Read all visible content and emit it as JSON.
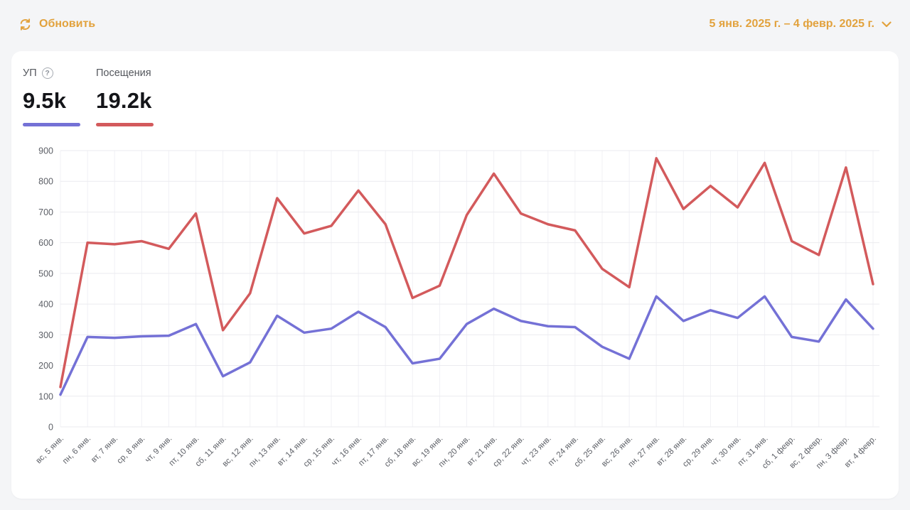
{
  "header": {
    "refresh_label": "Обновить",
    "date_range": "5 янв. 2025 г. – 4 февр. 2025 г."
  },
  "icons": {
    "help_glyph": "?"
  },
  "stats": [
    {
      "label": "УП",
      "value": "9.5k",
      "color": "#7471d6"
    },
    {
      "label": "Посещения",
      "value": "19.2k",
      "color": "#d35a5c"
    }
  ],
  "chart_data": {
    "type": "line",
    "title": "",
    "xlabel": "",
    "ylabel": "",
    "ylim": [
      0,
      900
    ],
    "yticks": [
      0,
      100,
      200,
      300,
      400,
      500,
      600,
      700,
      800,
      900
    ],
    "grid": true,
    "legend_position": "top-left",
    "categories": [
      "вс, 5 янв.",
      "пн, 6 янв.",
      "вт, 7 янв.",
      "ср, 8 янв.",
      "чт, 9 янв.",
      "пт, 10 янв.",
      "сб, 11 янв.",
      "вс, 12 янв.",
      "пн, 13 янв.",
      "вт, 14 янв.",
      "ср, 15 янв.",
      "чт, 16 янв.",
      "пт, 17 янв.",
      "сб, 18 янв.",
      "вс, 19 янв.",
      "пн, 20 янв.",
      "вт, 21 янв.",
      "ср, 22 янв.",
      "чт, 23 янв.",
      "пт, 24 янв.",
      "сб, 25 янв.",
      "вс, 26 янв.",
      "пн, 27 янв.",
      "вт, 28 янв.",
      "ср, 29 янв.",
      "чт, 30 янв.",
      "пт, 31 янв.",
      "сб, 1 февр.",
      "вс, 2 февр.",
      "пн, 3 февр.",
      "вт, 4 февр."
    ],
    "series": [
      {
        "id": "up",
        "name": "УП",
        "total": "9.5k",
        "color": "#7471d6",
        "values": [
          105,
          293,
          290,
          295,
          297,
          335,
          165,
          210,
          362,
          307,
          320,
          375,
          325,
          207,
          222,
          335,
          385,
          345,
          328,
          325,
          261,
          222,
          425,
          345,
          380,
          355,
          425,
          293,
          278,
          415,
          320
        ]
      },
      {
        "id": "visits",
        "name": "Посещения",
        "total": "19.2k",
        "color": "#d35a5c",
        "values": [
          130,
          600,
          595,
          605,
          580,
          695,
          315,
          435,
          745,
          630,
          655,
          770,
          660,
          420,
          460,
          690,
          825,
          695,
          660,
          640,
          515,
          455,
          875,
          710,
          785,
          715,
          860,
          605,
          560,
          845,
          465
        ]
      }
    ]
  },
  "colors": {
    "accent_orange": "#e2a23d",
    "axis_text": "#5c5f66",
    "grid_horizontal": "#ebebef",
    "grid_vertical": "#f1f1f5",
    "page_bg": "#f4f5f7",
    "card_bg": "#ffffff"
  }
}
